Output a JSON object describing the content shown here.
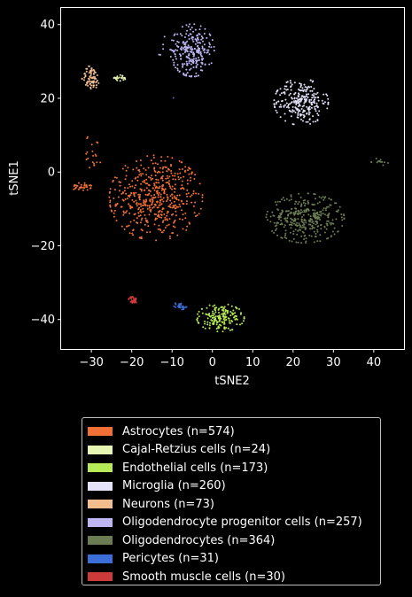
{
  "chart_data": {
    "type": "scatter",
    "title": "",
    "xlabel": "tSNE2",
    "ylabel": "tSNE1",
    "xlim": [
      -37.5,
      47.5
    ],
    "ylim": [
      -48,
      44.5
    ],
    "xticks": [
      -30,
      -20,
      -10,
      0,
      10,
      20,
      30,
      40
    ],
    "yticks": [
      -40,
      -20,
      0,
      20,
      40
    ],
    "xtick_labels": [
      "−30",
      "−20",
      "−10",
      "0",
      "10",
      "20",
      "30",
      "40"
    ],
    "ytick_labels": [
      "−40",
      "−20",
      "0",
      "20",
      "40"
    ],
    "grid": false,
    "legend_position": "below",
    "series": [
      {
        "name": "Astrocytes (n=574)",
        "color": "#f07035",
        "clusters": [
          {
            "cx": -14,
            "cy": -7,
            "sx": 5.5,
            "sy": 5.5,
            "n": 520
          },
          {
            "cx": -29.5,
            "cy": 5.5,
            "sx": 1.0,
            "sy": 2.6,
            "n": 20
          },
          {
            "cx": -32.5,
            "cy": -4,
            "sx": 1.2,
            "sy": 0.5,
            "n": 34
          }
        ]
      },
      {
        "name": "Cajal-Retzius cells (n=24)",
        "color": "#e6f5b4",
        "clusters": [
          {
            "cx": -23,
            "cy": 25.5,
            "sx": 0.9,
            "sy": 0.4,
            "n": 24
          }
        ]
      },
      {
        "name": "Endothelial cells (n=173)",
        "color": "#b6ea56",
        "clusters": [
          {
            "cx": 2,
            "cy": -39.5,
            "sx": 2.8,
            "sy": 1.8,
            "n": 173
          }
        ]
      },
      {
        "name": "Microglia (n=260)",
        "color": "#e4e2f8",
        "clusters": [
          {
            "cx": 22,
            "cy": 19,
            "sx": 3.2,
            "sy": 3.0,
            "n": 260
          }
        ]
      },
      {
        "name": "Neurons (n=73)",
        "color": "#f3be8e",
        "clusters": [
          {
            "cx": -30,
            "cy": 25.5,
            "sx": 1.1,
            "sy": 1.6,
            "n": 73
          }
        ]
      },
      {
        "name": "Oligodendrocyte progenitor cells (n=257)",
        "color": "#bdb6f2",
        "clusters": [
          {
            "cx": -5,
            "cy": 33,
            "sx": 2.6,
            "sy": 3.4,
            "n": 252
          },
          {
            "cx": -12.5,
            "cy": 34,
            "sx": 0.4,
            "sy": 2.0,
            "n": 5
          }
        ]
      },
      {
        "name": "Oligodendrocytes (n=364)",
        "color": "#6b7c52",
        "clusters": [
          {
            "cx": 23,
            "cy": -12.5,
            "sx": 4.6,
            "sy": 3.2,
            "n": 350
          },
          {
            "cx": 41.5,
            "cy": 2.7,
            "sx": 1.0,
            "sy": 0.5,
            "n": 14
          }
        ]
      },
      {
        "name": "Pericytes (n=31)",
        "color": "#3b6ed8",
        "clusters": [
          {
            "cx": -8,
            "cy": -36.3,
            "sx": 0.8,
            "sy": 0.5,
            "n": 30
          },
          {
            "cx": -9.7,
            "cy": 20,
            "sx": 0.1,
            "sy": 0.1,
            "n": 1
          }
        ]
      },
      {
        "name": "Smooth muscle cells (n=30)",
        "color": "#cc3a3a",
        "clusters": [
          {
            "cx": -19.7,
            "cy": -34.7,
            "sx": 0.5,
            "sy": 0.5,
            "n": 30
          }
        ]
      }
    ]
  }
}
